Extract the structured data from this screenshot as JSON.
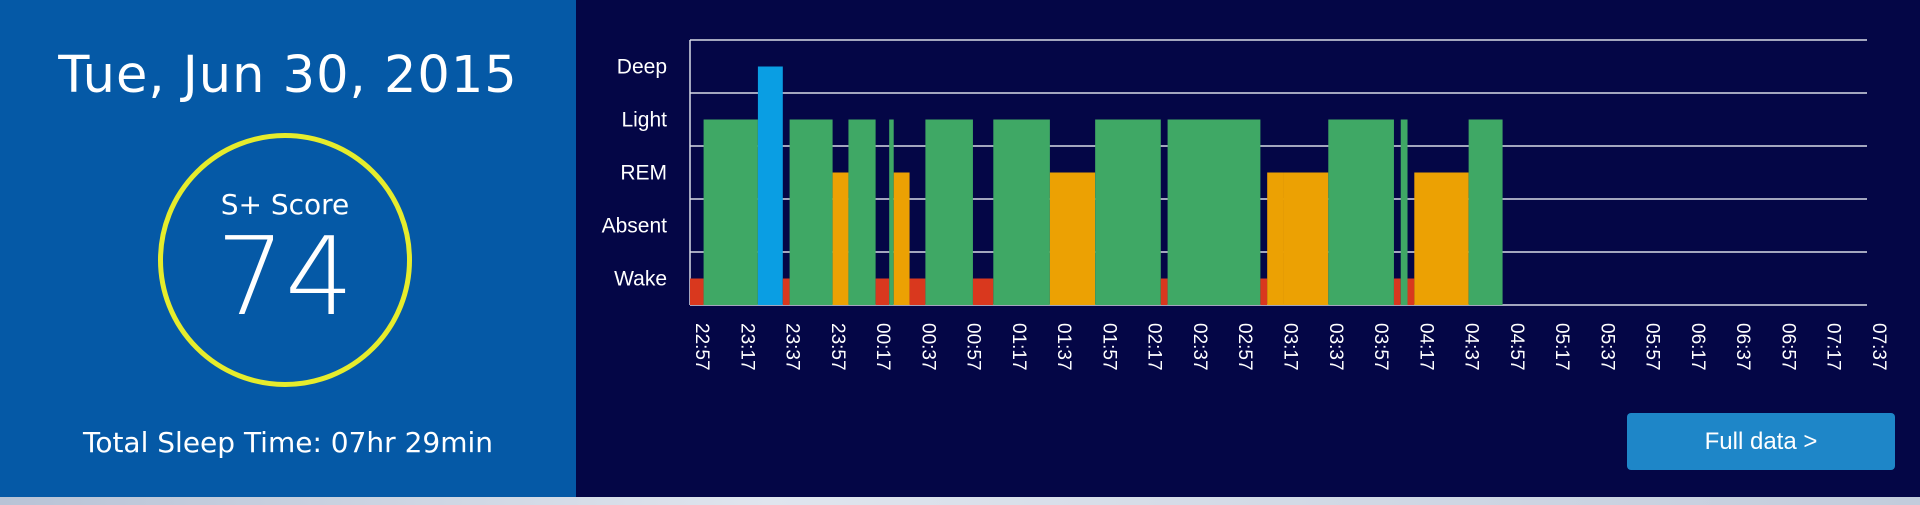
{
  "summary": {
    "date": "Tue, Jun 30, 2015",
    "score_label": "S+ Score",
    "score_value": "74",
    "total_sleep": "Total Sleep Time: 07hr 29min"
  },
  "button": {
    "full_data_label": "Full data >"
  },
  "colors": {
    "left_panel_bg": "#0559a6",
    "chart_bg": "#040646",
    "score_ring": "#e6ec2c",
    "Deep": "#0a9ee3",
    "Light": "#3fa865",
    "REM": "#eca103",
    "Absent": "#eca103",
    "Wake": "#d9381e",
    "button_bg": "#1e86c8"
  },
  "chart_data": {
    "type": "bar",
    "title": "",
    "xlabel": "",
    "ylabel": "",
    "y_categories": [
      "Deep",
      "Light",
      "REM",
      "Absent",
      "Wake"
    ],
    "x_ticks": [
      "22:57",
      "23:17",
      "23:37",
      "23:57",
      "00:17",
      "00:37",
      "00:57",
      "01:17",
      "01:37",
      "01:57",
      "02:17",
      "02:37",
      "02:57",
      "03:17",
      "03:37",
      "03:57",
      "04:17",
      "04:37",
      "04:57",
      "05:17",
      "05:37",
      "05:57",
      "06:17",
      "06:37",
      "06:57",
      "07:17",
      "07:37"
    ],
    "xlim": [
      "22:57",
      "07:37"
    ],
    "grid": true,
    "legend": "none",
    "segments": [
      {
        "start": "22:57",
        "end": "23:03",
        "stage": "Wake"
      },
      {
        "start": "23:03",
        "end": "23:27",
        "stage": "Light"
      },
      {
        "start": "23:27",
        "end": "23:38",
        "stage": "Deep"
      },
      {
        "start": "23:38",
        "end": "23:41",
        "stage": "Wake"
      },
      {
        "start": "23:41",
        "end": "24:00",
        "stage": "Light"
      },
      {
        "start": "24:00",
        "end": "00:07",
        "stage": "REM"
      },
      {
        "start": "00:07",
        "end": "00:19",
        "stage": "Light"
      },
      {
        "start": "00:19",
        "end": "00:25",
        "stage": "Wake"
      },
      {
        "start": "00:25",
        "end": "00:27",
        "stage": "Light"
      },
      {
        "start": "00:27",
        "end": "00:34",
        "stage": "REM"
      },
      {
        "start": "00:34",
        "end": "00:41",
        "stage": "Wake"
      },
      {
        "start": "00:41",
        "end": "01:02",
        "stage": "Light"
      },
      {
        "start": "01:02",
        "end": "01:11",
        "stage": "Wake"
      },
      {
        "start": "01:11",
        "end": "01:36",
        "stage": "Light"
      },
      {
        "start": "01:36",
        "end": "01:56",
        "stage": "REM"
      },
      {
        "start": "01:56",
        "end": "02:25",
        "stage": "Light"
      },
      {
        "start": "02:25",
        "end": "02:28",
        "stage": "Wake"
      },
      {
        "start": "02:28",
        "end": "03:09",
        "stage": "Light"
      },
      {
        "start": "03:09",
        "end": "03:12",
        "stage": "Wake"
      },
      {
        "start": "03:12",
        "end": "03:19",
        "stage": "REM"
      },
      {
        "start": "03:19",
        "end": "03:39",
        "stage": "REM"
      },
      {
        "start": "03:39",
        "end": "04:08",
        "stage": "Light"
      },
      {
        "start": "04:08",
        "end": "04:11",
        "stage": "Wake"
      },
      {
        "start": "04:11",
        "end": "04:14",
        "stage": "Light"
      },
      {
        "start": "04:14",
        "end": "04:17",
        "stage": "Wake"
      },
      {
        "start": "04:17",
        "end": "04:41",
        "stage": "REM"
      },
      {
        "start": "04:41",
        "end": "04:56",
        "stage": "Light"
      }
    ]
  }
}
